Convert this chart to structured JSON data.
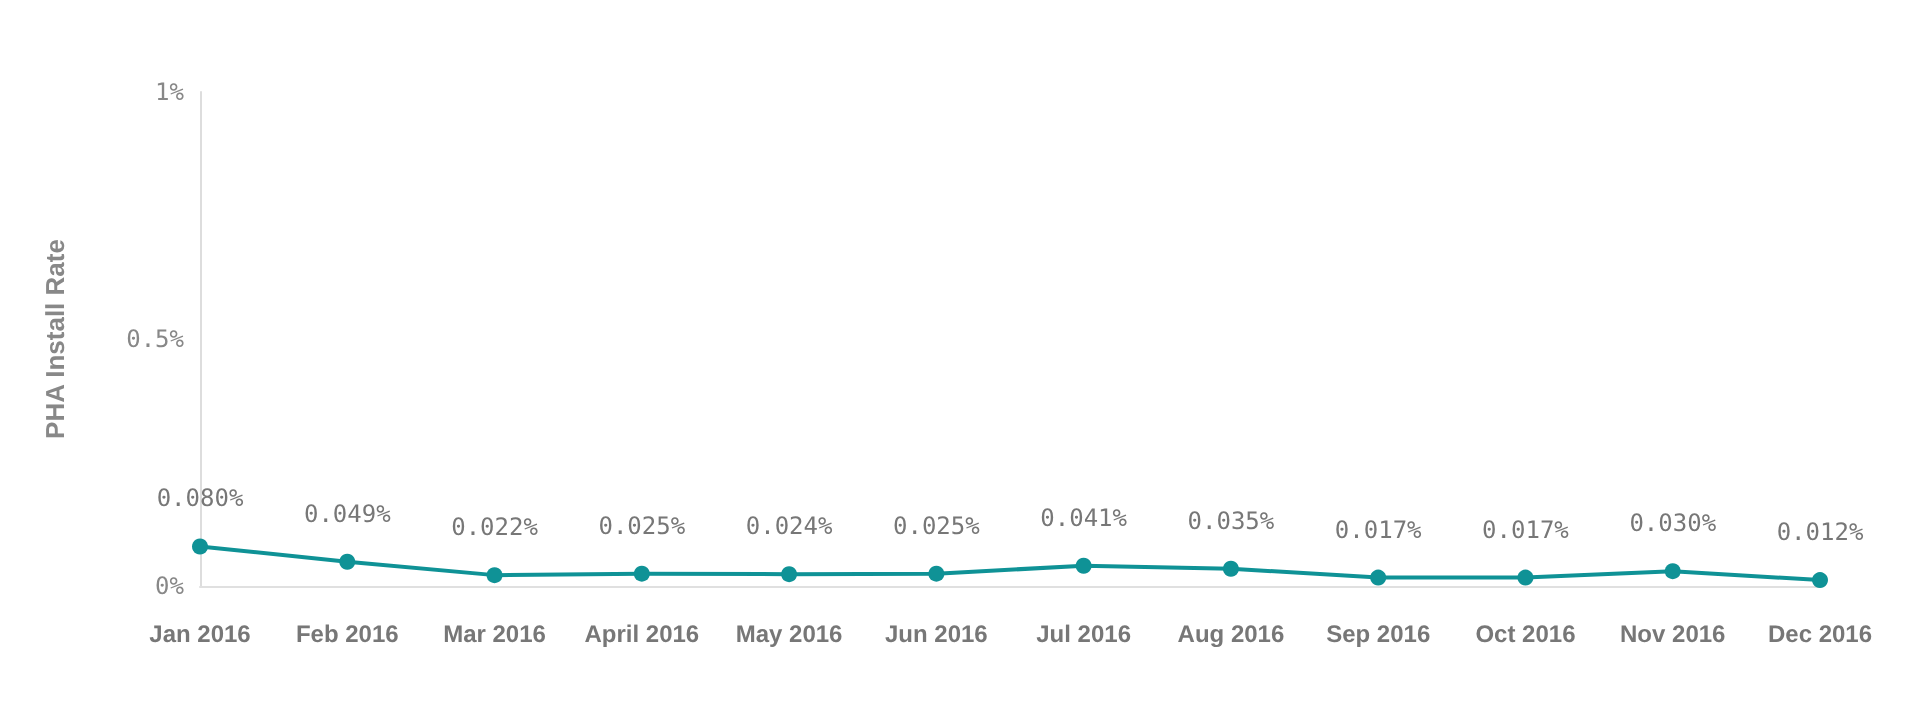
{
  "chart_data": {
    "type": "line",
    "ylabel": "PHA Install Rate",
    "categories": [
      "Jan 2016",
      "Feb 2016",
      "Mar 2016",
      "April 2016",
      "May 2016",
      "Jun 2016",
      "Jul 2016",
      "Aug 2016",
      "Sep 2016",
      "Oct 2016",
      "Nov 2016",
      "Dec 2016"
    ],
    "series": [
      {
        "color": "#0f9296",
        "values": [
          0.08,
          0.049,
          0.022,
          0.025,
          0.024,
          0.025,
          0.041,
          0.035,
          0.017,
          0.017,
          0.03,
          0.012
        ],
        "value_labels": [
          "0.080%",
          "0.049%",
          "0.022%",
          "0.025%",
          "0.024%",
          "0.025%",
          "0.041%",
          "0.035%",
          "0.017%",
          "0.017%",
          "0.030%",
          "0.012%"
        ]
      }
    ],
    "ylim": [
      0,
      1
    ],
    "yticks": [
      {
        "value": 0,
        "label": "0%"
      },
      {
        "value": 0.5,
        "label": "0.5%"
      },
      {
        "value": 1,
        "label": "1%"
      }
    ],
    "grid": false,
    "marker": "circle",
    "line_style": "solid"
  }
}
